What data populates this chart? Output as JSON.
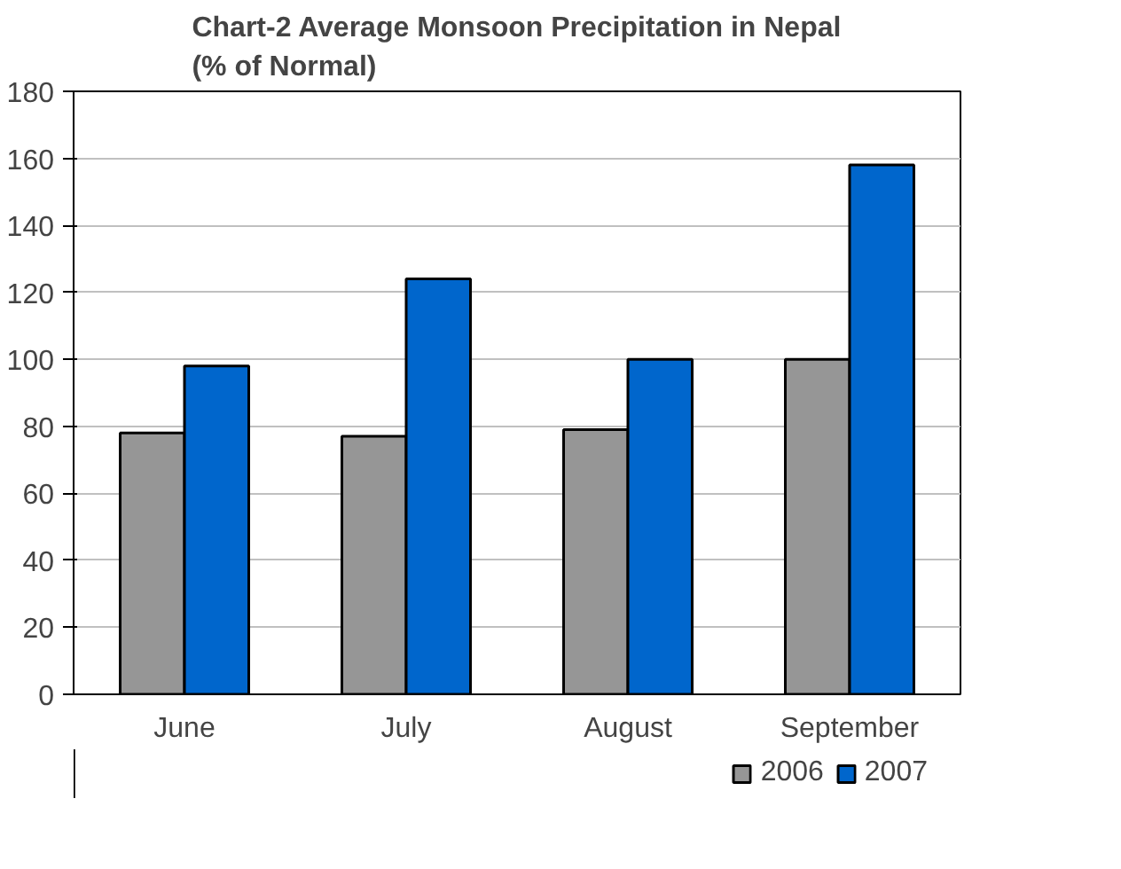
{
  "chart_data": {
    "type": "bar",
    "title": "Chart-2 Average Monsoon Precipitation in Nepal\n(% of Normal)",
    "categories": [
      "June",
      "July",
      "August",
      "September"
    ],
    "series": [
      {
        "name": "2006",
        "color": "#969696",
        "values": [
          78,
          77,
          79,
          100
        ]
      },
      {
        "name": "2007",
        "color": "#0066cc",
        "values": [
          98,
          124,
          100,
          158
        ]
      }
    ],
    "ylim": [
      0,
      180
    ],
    "yticks": [
      0,
      20,
      40,
      60,
      80,
      100,
      120,
      140,
      160,
      180
    ],
    "grid": "y",
    "legend": "bottom right"
  }
}
